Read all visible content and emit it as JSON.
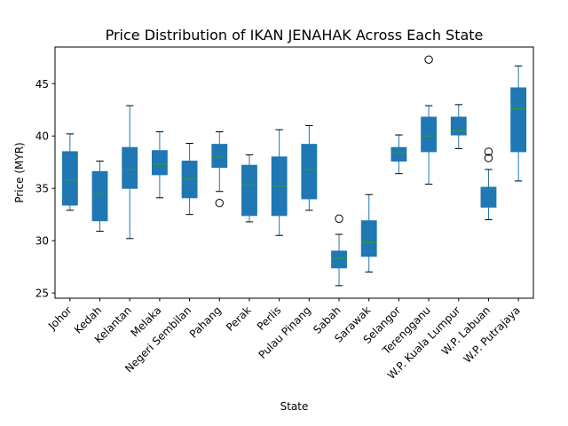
{
  "chart_data": {
    "type": "box",
    "title": "Price Distribution of IKAN JENAHAK Across Each State",
    "xlabel": "State",
    "ylabel": "Price (MYR)",
    "ylim": [
      24.5,
      48.5
    ],
    "yticks": [
      25,
      30,
      35,
      40,
      45
    ],
    "grid": false,
    "legend": "none",
    "box_color": "#1f77b4",
    "median_color": "#2ca02c",
    "categories": [
      "Johor",
      "Kedah",
      "Kelantan",
      "Melaka",
      "Negeri Sembilan",
      "Pahang",
      "Perak",
      "Perlis",
      "Pulau Pinang",
      "Sabah",
      "Sarawak",
      "Selangor",
      "Terengganu",
      "W.P. Kuala Lumpur",
      "W.P. Labuan",
      "W.P. Putrajaya"
    ],
    "boxes": [
      {
        "category": "Johor",
        "whislo": 32.9,
        "q1": 33.4,
        "med": 35.8,
        "q3": 38.5,
        "whishi": 40.2,
        "fliers": []
      },
      {
        "category": "Kedah",
        "whislo": 30.9,
        "q1": 31.9,
        "med": 34.5,
        "q3": 36.6,
        "whishi": 37.6,
        "fliers": []
      },
      {
        "category": "Kelantan",
        "whislo": 30.2,
        "q1": 35.0,
        "med": 36.8,
        "q3": 38.9,
        "whishi": 42.9,
        "fliers": []
      },
      {
        "category": "Melaka",
        "whislo": 34.1,
        "q1": 36.3,
        "med": 37.3,
        "q3": 38.6,
        "whishi": 40.4,
        "fliers": []
      },
      {
        "category": "Negeri Sembilan",
        "whislo": 32.5,
        "q1": 34.1,
        "med": 35.9,
        "q3": 37.6,
        "whishi": 39.3,
        "fliers": []
      },
      {
        "category": "Pahang",
        "whislo": 34.7,
        "q1": 37.0,
        "med": 38.0,
        "q3": 39.2,
        "whishi": 40.4,
        "fliers": [
          33.6
        ]
      },
      {
        "category": "Perak",
        "whislo": 31.8,
        "q1": 32.4,
        "med": 35.3,
        "q3": 37.2,
        "whishi": 38.2,
        "fliers": []
      },
      {
        "category": "Perlis",
        "whislo": 30.5,
        "q1": 32.4,
        "med": 35.2,
        "q3": 38.0,
        "whishi": 40.6,
        "fliers": []
      },
      {
        "category": "Pulau Pinang",
        "whislo": 32.9,
        "q1": 34.0,
        "med": 36.8,
        "q3": 39.2,
        "whishi": 41.0,
        "fliers": []
      },
      {
        "category": "Sabah",
        "whislo": 25.7,
        "q1": 27.4,
        "med": 28.3,
        "q3": 29.0,
        "whishi": 30.6,
        "fliers": [
          32.1
        ]
      },
      {
        "category": "Sarawak",
        "whislo": 27.0,
        "q1": 28.5,
        "med": 29.8,
        "q3": 31.9,
        "whishi": 34.4,
        "fliers": []
      },
      {
        "category": "Selangor",
        "whislo": 36.4,
        "q1": 37.6,
        "med": 38.4,
        "q3": 38.9,
        "whishi": 40.1,
        "fliers": []
      },
      {
        "category": "Terengganu",
        "whislo": 35.4,
        "q1": 38.5,
        "med": 40.0,
        "q3": 41.8,
        "whishi": 42.9,
        "fliers": [
          47.3
        ]
      },
      {
        "category": "W.P. Kuala Lumpur",
        "whislo": 38.8,
        "q1": 40.1,
        "med": 40.5,
        "q3": 41.8,
        "whishi": 43.0,
        "fliers": []
      },
      {
        "category": "W.P. Labuan",
        "whislo": 32.0,
        "q1": 33.2,
        "med": 34.9,
        "q3": 35.1,
        "whishi": 36.8,
        "fliers": [
          37.9,
          38.5
        ]
      },
      {
        "category": "W.P. Putrajaya",
        "whislo": 35.7,
        "q1": 38.5,
        "med": 42.6,
        "q3": 44.6,
        "whishi": 46.7,
        "fliers": []
      }
    ]
  }
}
